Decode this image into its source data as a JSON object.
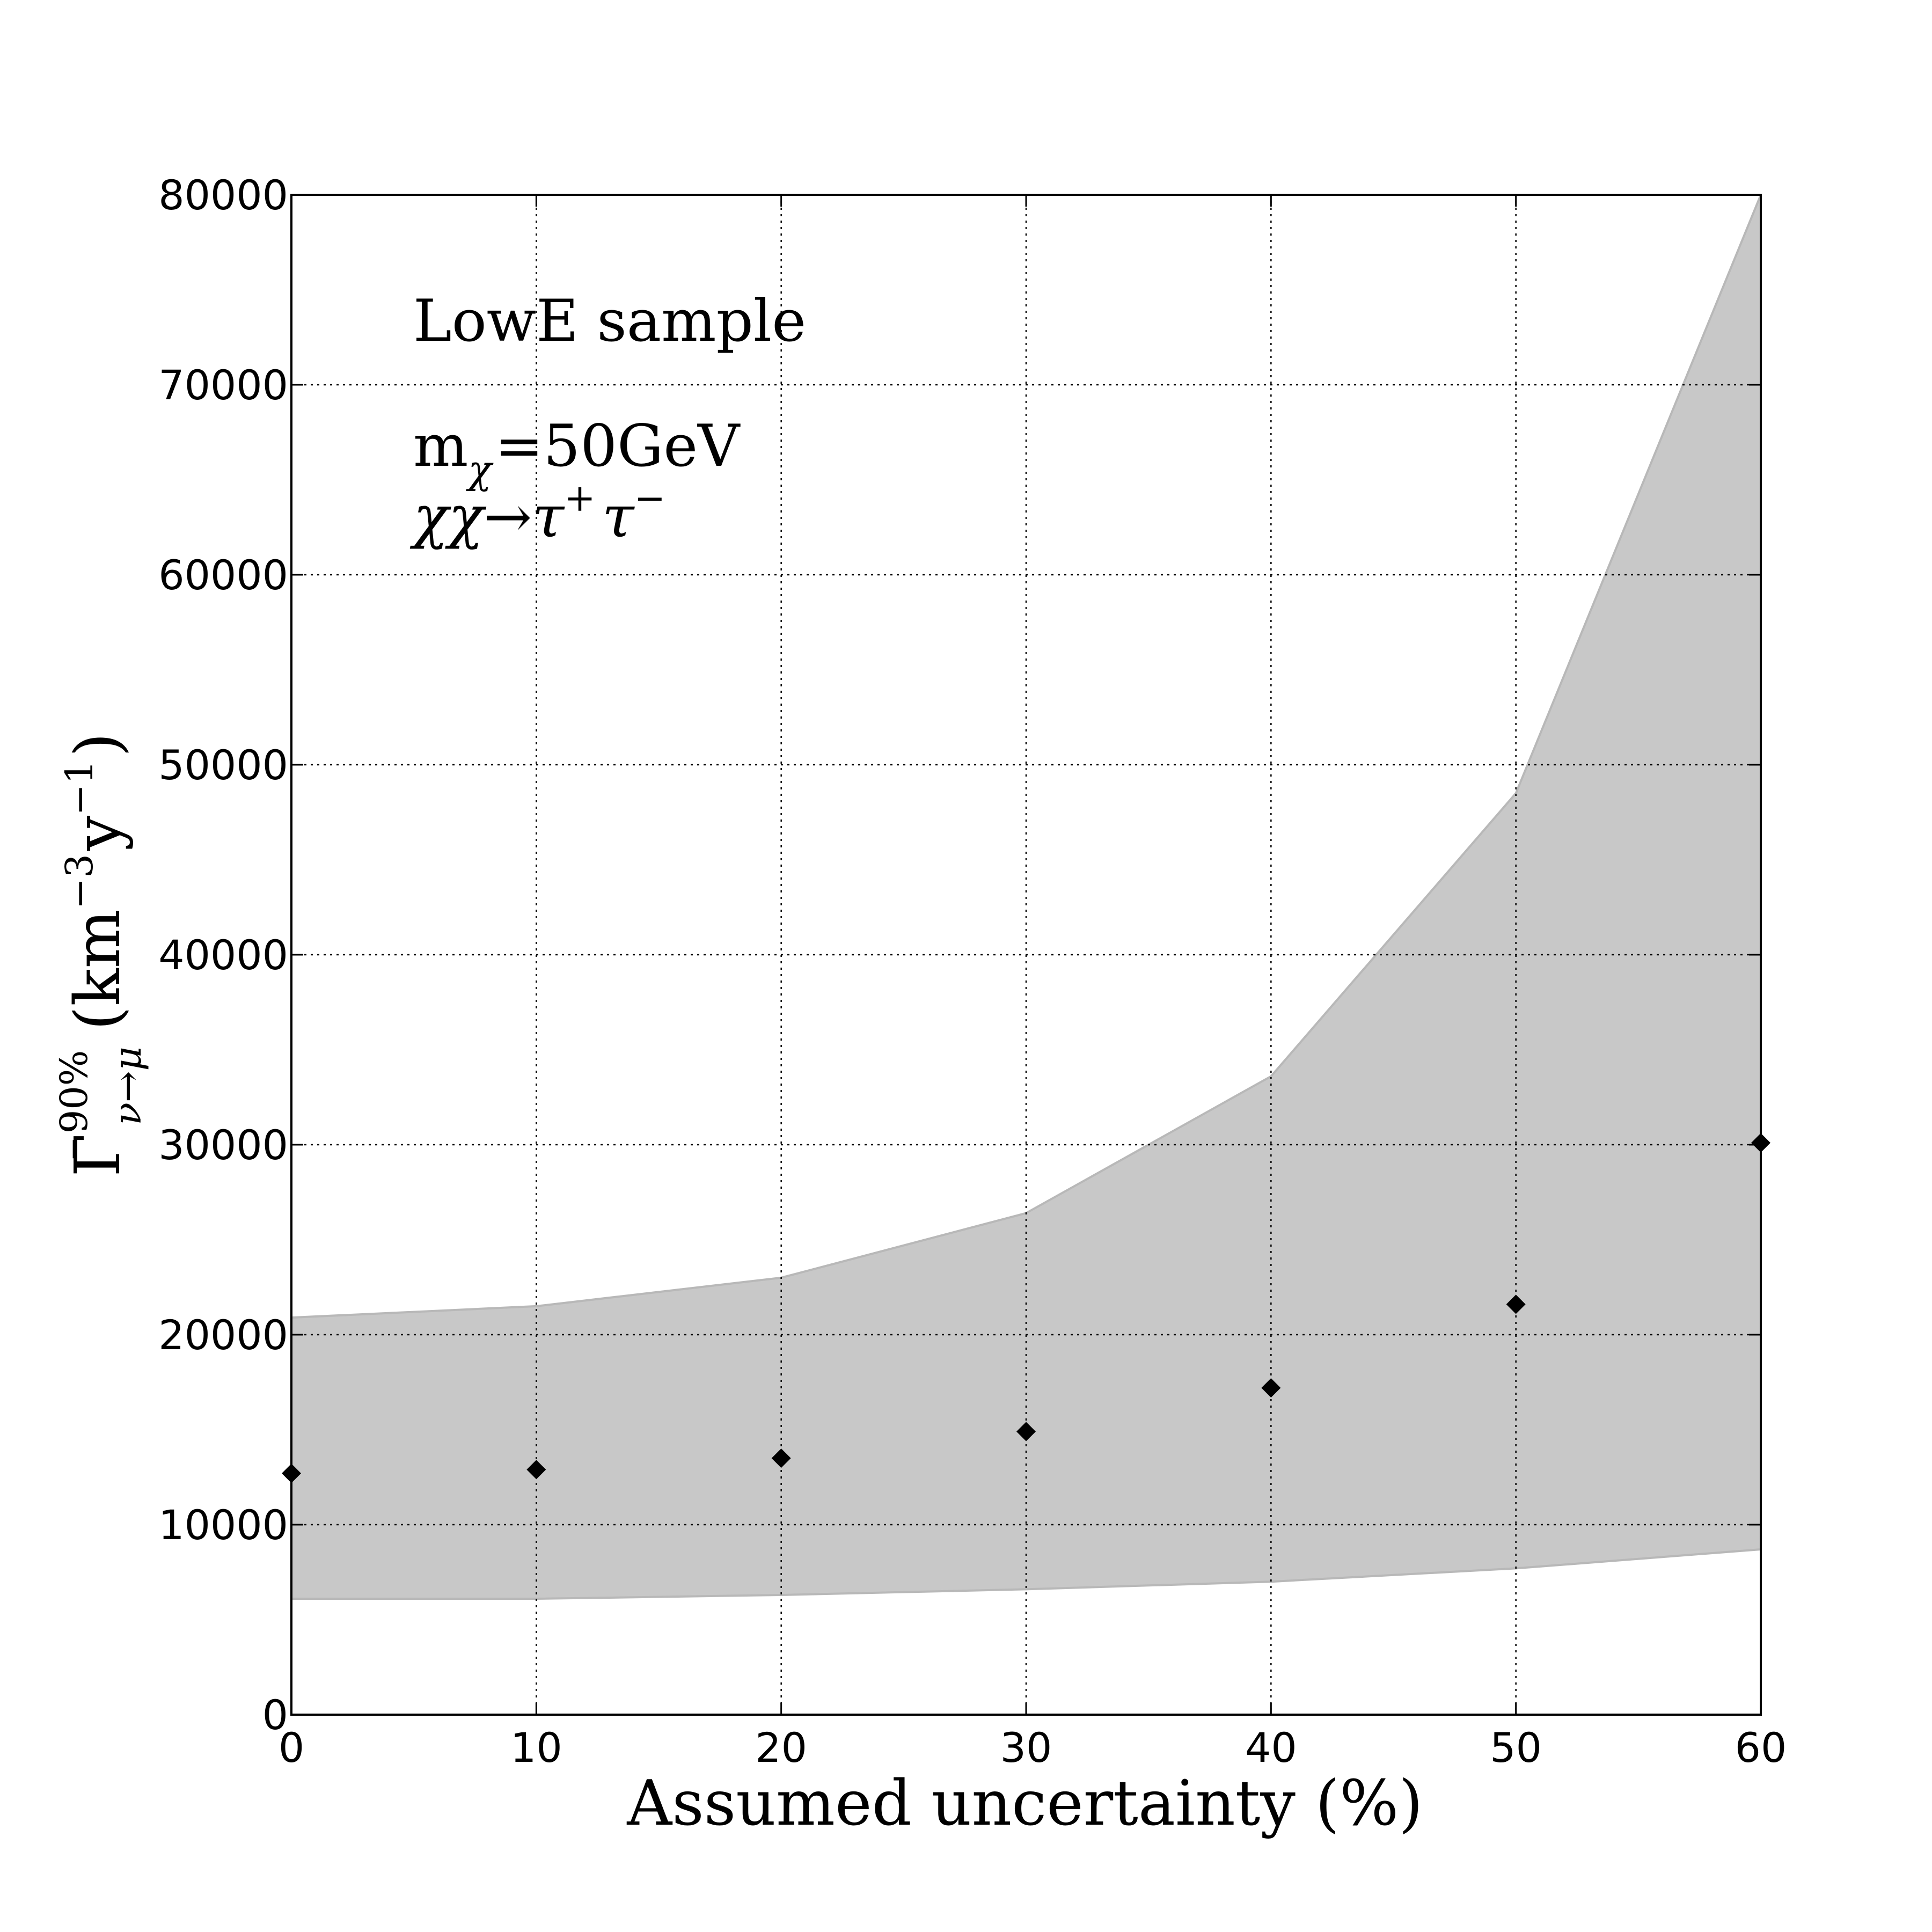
{
  "chart_data": {
    "type": "scatter",
    "x_tick_labels": [
      "0",
      "10",
      "20",
      "30",
      "40",
      "50",
      "60"
    ],
    "y_tick_labels": [
      "0",
      "10000",
      "20000",
      "30000",
      "40000",
      "50000",
      "60000",
      "70000",
      "80000"
    ],
    "xlim": [
      0,
      60
    ],
    "ylim": [
      0,
      80000
    ],
    "grid": true,
    "xlabel": "Assumed uncertainty (%)",
    "ylabel": {
      "base": "Γ̄",
      "superscript": "90%",
      "subscript": "ν→μ",
      "unit_open": "(km",
      "unit_exp1": "−3",
      "unit_mid": "y",
      "unit_exp2": "−1",
      "unit_close": ")"
    },
    "annotations": {
      "sample": "LowE sample",
      "mass_prefix": "m",
      "mass_subscript": "χ",
      "mass_value": "=50GeV",
      "channel_prefix": "χχ→τ",
      "channel_sup1": "+",
      "channel_mid": "τ",
      "channel_sup2": "−"
    },
    "x": [
      0,
      10,
      20,
      30,
      40,
      50,
      60
    ],
    "points": [
      12700,
      12900,
      13500,
      14900,
      17200,
      21600,
      30100
    ],
    "band_upper": [
      20900,
      21500,
      23000,
      26400,
      33600,
      48500,
      80000
    ],
    "band_lower": [
      6100,
      6100,
      6300,
      6600,
      7000,
      7700,
      8700
    ],
    "colors": {
      "band": "#c8c8c8",
      "band_edge": "#b8b8b8",
      "marker": "#000000"
    }
  }
}
